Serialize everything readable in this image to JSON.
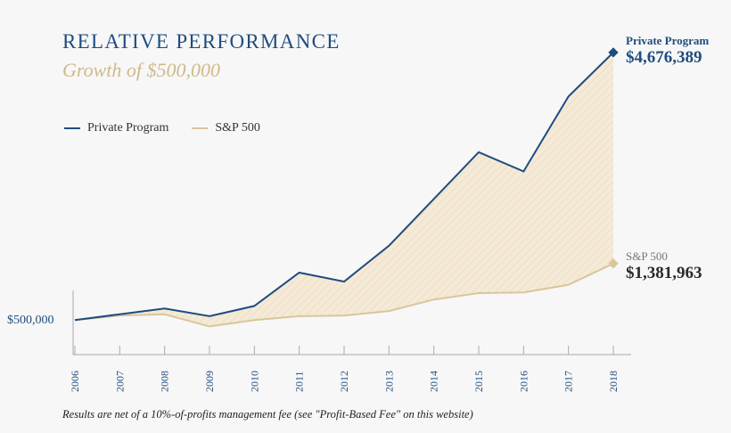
{
  "chart_data": {
    "type": "area",
    "title": "RELATIVE PERFORMANCE",
    "subtitle": "Growth of $500,000",
    "categories": [
      "2006",
      "2007",
      "2008",
      "2009",
      "2010",
      "2011",
      "2012",
      "2013",
      "2014",
      "2015",
      "2016",
      "2017",
      "2018"
    ],
    "ylim": [
      350000,
      4800000
    ],
    "series": [
      {
        "name": "Private Program",
        "color": "#1f4c80",
        "values": [
          500000,
          590000,
          680000,
          560000,
          720000,
          1240000,
          1100000,
          1660000,
          2390000,
          3120000,
          2820000,
          3990000,
          4676389
        ]
      },
      {
        "name": "S&P 500",
        "color": "#d9c69c",
        "values": [
          500000,
          570000,
          590000,
          400000,
          500000,
          560000,
          570000,
          640000,
          820000,
          920000,
          930000,
          1050000,
          1381963
        ]
      }
    ],
    "start_label": "$500,000",
    "end_labels": [
      {
        "name": "Private Program",
        "value": "$4,676,389"
      },
      {
        "name": "S&P 500",
        "value": "$1,381,963"
      }
    ],
    "legend_position": "top-left",
    "grid": false
  },
  "footnote": "Results are net of a 10%-of-profits management fee (see \"Profit-Based Fee\" on this website)"
}
